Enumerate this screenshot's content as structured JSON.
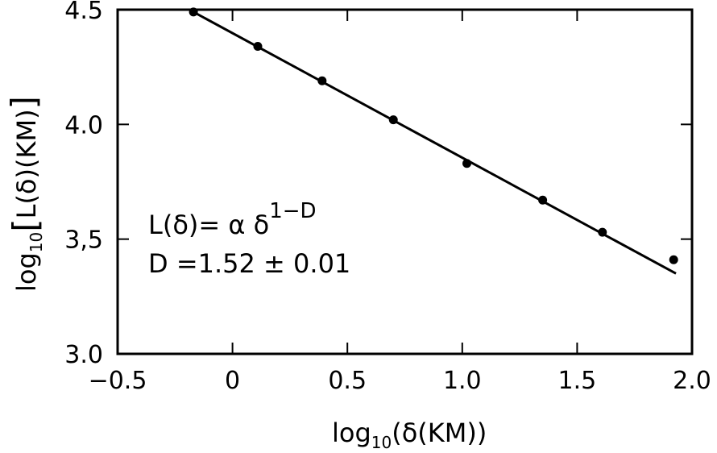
{
  "chart_data": {
    "type": "scatter",
    "title": "",
    "xlabel": {
      "prefix": "log",
      "subscript": "10",
      "body": "(δ(KM))"
    },
    "ylabel": {
      "prefix": "log",
      "subscript": "10",
      "bracket_open": "[",
      "body": "L(δ)(KM)",
      "bracket_close": "]"
    },
    "xlim": [
      -0.5,
      2.0
    ],
    "ylim": [
      3.0,
      4.5
    ],
    "x_ticks": [
      -0.5,
      0,
      0.5,
      1.0,
      1.5,
      2.0
    ],
    "x_tick_labels": [
      "−0.5",
      "0",
      "0.5",
      "1.0",
      "1.5",
      "2.0"
    ],
    "y_ticks": [
      3.0,
      3.5,
      4.0,
      4.5
    ],
    "y_tick_labels": [
      "3.0",
      "3,5",
      "4.0",
      "4.5"
    ],
    "grid": false,
    "series": [
      {
        "type": "scatter",
        "x": [
          -0.17,
          0.11,
          0.39,
          0.7,
          1.02,
          1.35,
          1.61,
          1.92
        ],
        "y": [
          4.49,
          4.34,
          4.19,
          4.02,
          3.83,
          3.67,
          3.53,
          3.41
        ]
      },
      {
        "type": "line",
        "x": [
          -0.17,
          1.93
        ],
        "y": [
          4.49,
          3.35
        ]
      }
    ],
    "annotations": {
      "formula_lhs": "L(δ)= α δ",
      "formula_exp": "1−D",
      "dimension": "D =1.52 ± 0.01"
    }
  }
}
